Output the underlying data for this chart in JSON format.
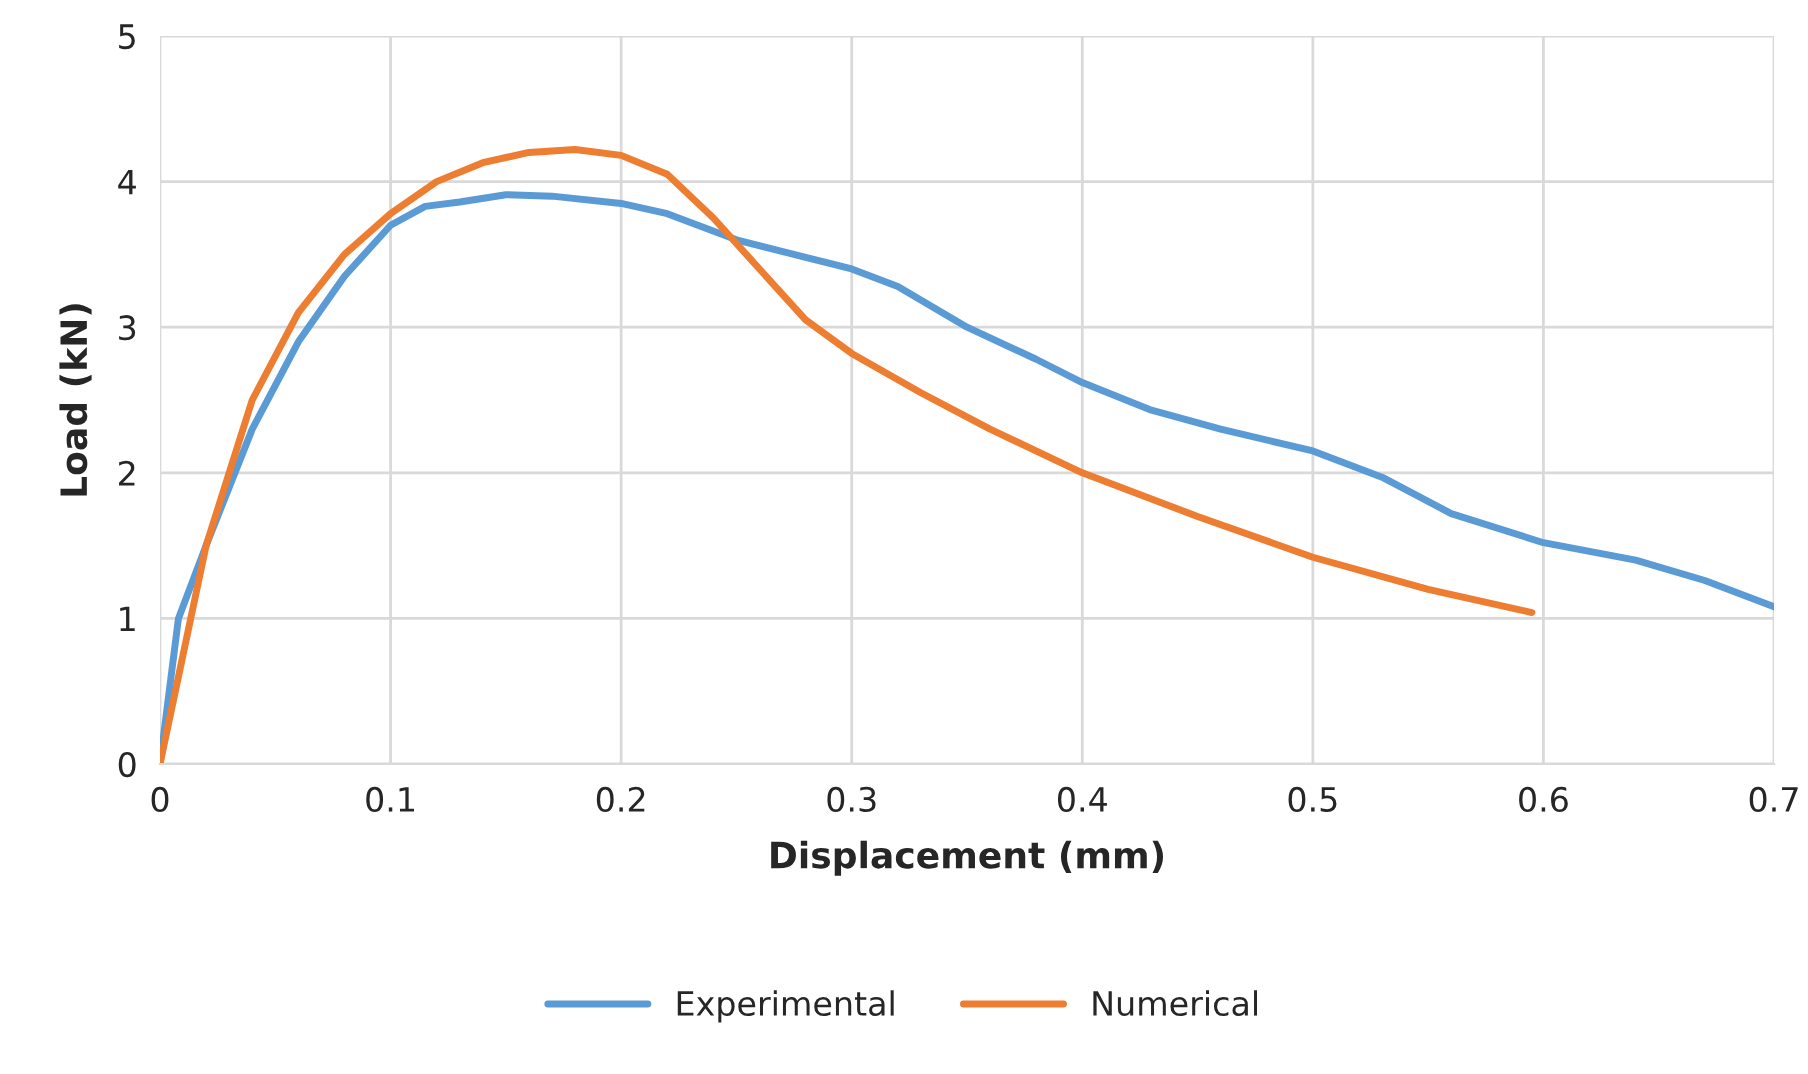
{
  "chart_data": {
    "type": "line",
    "xlabel": "Displacement (mm)",
    "ylabel": "Load (kN)",
    "xlim": [
      0,
      0.7
    ],
    "ylim": [
      0,
      5
    ],
    "xticks": [
      {
        "value": 0,
        "label": "0"
      },
      0.1,
      0.2,
      0.3,
      0.4,
      0.5,
      0.6,
      0.7
    ],
    "yticks": [
      0,
      1,
      2,
      3,
      4,
      5
    ],
    "grid": true,
    "legend": "bottom",
    "marker": "none",
    "line_style": "solid",
    "series": [
      {
        "name": "Experimental",
        "color": "#5b9bd5",
        "x": [
          0,
          0.008,
          0.02,
          0.04,
          0.06,
          0.08,
          0.1,
          0.115,
          0.13,
          0.15,
          0.17,
          0.2,
          0.22,
          0.25,
          0.28,
          0.3,
          0.32,
          0.35,
          0.38,
          0.4,
          0.43,
          0.46,
          0.5,
          0.53,
          0.56,
          0.6,
          0.64,
          0.67,
          0.7
        ],
        "values": [
          0,
          1.0,
          1.5,
          2.3,
          2.9,
          3.35,
          3.7,
          3.83,
          3.86,
          3.91,
          3.9,
          3.85,
          3.78,
          3.6,
          3.48,
          3.4,
          3.28,
          3.0,
          2.78,
          2.62,
          2.43,
          2.3,
          2.15,
          1.97,
          1.72,
          1.52,
          1.4,
          1.26,
          1.08
        ]
      },
      {
        "name": "Numerical",
        "color": "#ed7d31",
        "x": [
          0,
          0.02,
          0.04,
          0.06,
          0.08,
          0.1,
          0.12,
          0.14,
          0.16,
          0.18,
          0.2,
          0.22,
          0.24,
          0.26,
          0.28,
          0.3,
          0.33,
          0.36,
          0.4,
          0.45,
          0.5,
          0.55,
          0.595
        ],
        "values": [
          0,
          1.5,
          2.5,
          3.1,
          3.5,
          3.78,
          4.0,
          4.13,
          4.2,
          4.22,
          4.18,
          4.05,
          3.75,
          3.4,
          3.05,
          2.82,
          2.55,
          2.3,
          2.0,
          1.7,
          1.42,
          1.2,
          1.04
        ]
      }
    ]
  }
}
